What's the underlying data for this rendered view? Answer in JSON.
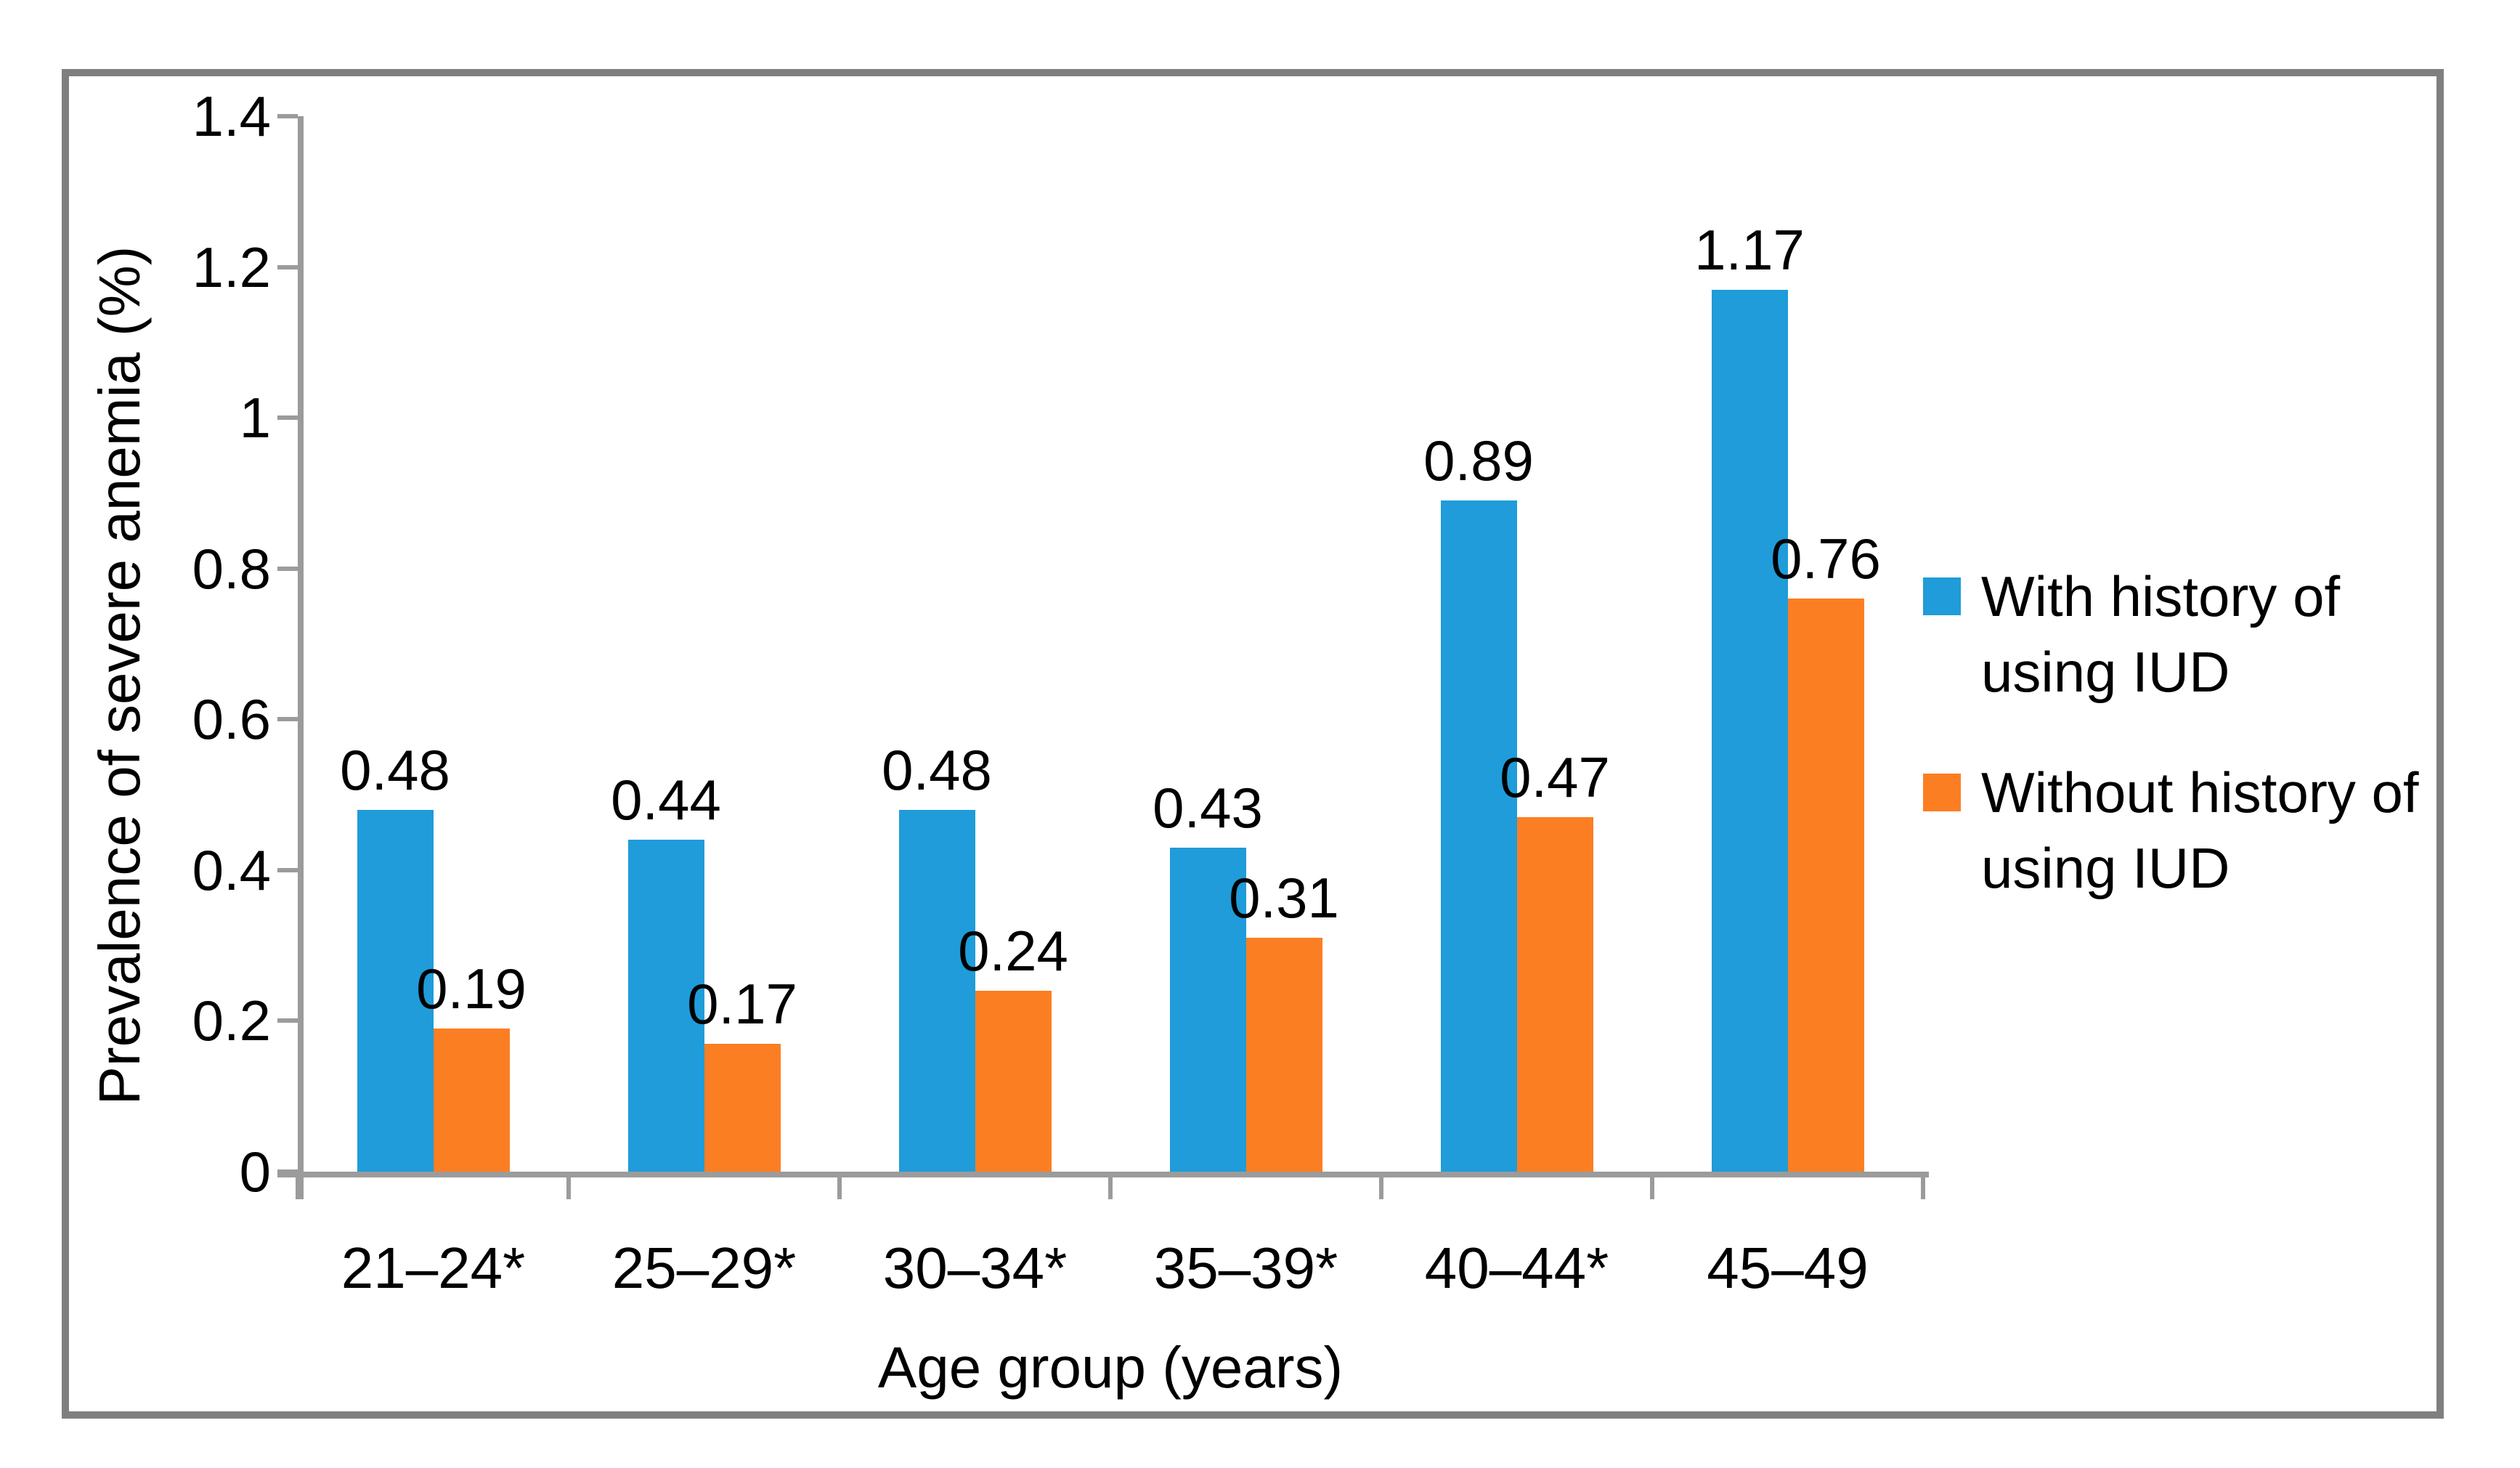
{
  "chart_data": {
    "type": "bar",
    "title": "",
    "categories": [
      "21–24*",
      "25–29*",
      "30–34*",
      "35–39*",
      "40–44*",
      "45–49"
    ],
    "series": [
      {
        "name": "With history of using IUD",
        "legend_lines": [
          "With history of",
          "using IUD"
        ],
        "color": "#1F9CD9",
        "values": [
          0.48,
          0.44,
          0.48,
          0.43,
          0.89,
          1.17
        ]
      },
      {
        "name": "Without history of using IUD",
        "legend_lines": [
          "Without history of",
          "using IUD"
        ],
        "color": "#FC7E23",
        "values": [
          0.19,
          0.17,
          0.24,
          0.31,
          0.47,
          0.76
        ]
      }
    ],
    "data_labels": [
      "0.48",
      "0.19",
      "0.44",
      "0.17",
      "0.48",
      "0.24",
      "0.43",
      "0.31",
      "0.89",
      "0.47",
      "1.17",
      "0.76"
    ],
    "xlabel": "Age group (years)",
    "ylabel": "Prevalence of severe anemia (%)",
    "ylim": [
      0,
      1.4
    ],
    "yticks": [
      "0",
      "0.2",
      "0.4",
      "0.6",
      "0.8",
      "1",
      "1.2",
      "1.4"
    ],
    "ytick_values": [
      0,
      0.2,
      0.4,
      0.6,
      0.8,
      1.0,
      1.2,
      1.4
    ],
    "grid": false,
    "legend_position": "right",
    "bar_label_position": "outside-end"
  },
  "colors": {
    "series_blue": "#1F9CD9",
    "series_orange": "#FC7E23",
    "axis_gray": "#9b9b9b",
    "border_gray": "#7f7f7f",
    "text": "#000000",
    "background": "#ffffff"
  }
}
